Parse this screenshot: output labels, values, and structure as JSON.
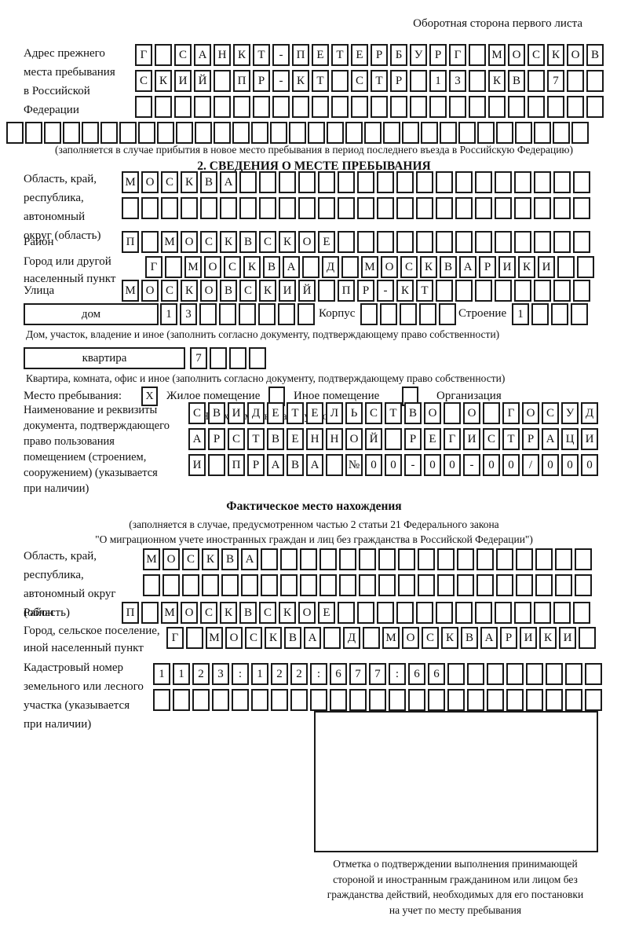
{
  "page": {
    "header_note": "Оборотная сторона первого листа"
  },
  "prev_address": {
    "label": "Адрес прежнего\nместа пребывания\nв Российской\nФедерации",
    "row1": {
      "text": "Г САНКТ-ПЕТЕРБУРГ МОСКОВ",
      "len": 24
    },
    "row2": {
      "text": "СКИЙ ПР-КТ СТР 13 КВ 7",
      "len": 24
    },
    "row3": {
      "text": "",
      "len": 24
    },
    "overflow_row": {
      "text": "",
      "len": 31
    },
    "caption": "(заполняется в случае прибытия в новое место пребывания в период последнего въезда в Российскую Федерацию)"
  },
  "section2": {
    "title": "2. СВЕДЕНИЯ О МЕСТЕ ПРЕБЫВАНИЯ",
    "region": {
      "label": "Область, край,\nреспублика,\nавтономный\nокруг (область)",
      "row1": {
        "text": "МОСКВА",
        "len": 24
      },
      "row2": {
        "text": "",
        "len": 24
      }
    },
    "district": {
      "label": "Район",
      "row": {
        "text": "П МОСКВСКОЕ",
        "len": 24
      }
    },
    "city": {
      "label": "Город или другой\nнаселенный пункт",
      "row": {
        "text": "Г МОСКВА Д МОСКВАРИКИ",
        "len": 23
      }
    },
    "street": {
      "label": "Улица",
      "row": {
        "text": "МОСКОВСКИЙ ПР-КТ",
        "len": 24
      }
    },
    "house": {
      "box_label": "дом",
      "cells": {
        "text": "13",
        "len": 8
      },
      "korpus_label": "Корпус",
      "korpus_cells": {
        "text": "",
        "len": 5
      },
      "stroenie_label": "Строение",
      "stroenie_cells": {
        "text": "1",
        "len": 4
      },
      "caption": "Дом, участок, владение и иное (заполнить согласно документу, подтверждающему право собственности)"
    },
    "apartment": {
      "box_label": "квартира",
      "cells": {
        "text": "7",
        "len": 4
      },
      "caption": "Квартира, комната, офис и иное (заполнить согласно документу, подтверждающему право собственности)"
    },
    "stay_type": {
      "label": "Место пребывания:",
      "options": [
        {
          "label": "Жилое помещение",
          "mark": "X"
        },
        {
          "label": "Иное помещение",
          "mark": ""
        },
        {
          "label": "Организация",
          "mark": ""
        }
      ],
      "hint": "(Необходимо выбрать нужное)"
    },
    "document": {
      "label": "Наименование и реквизиты\nдокумента, подтверждающего\nправо пользования\nпомещением (строением,\nсооружением) (указывается\nпри наличии)",
      "row1": {
        "text": "СВИДЕТЕЛЬСТВО О ГОСУД",
        "len": 21
      },
      "row2": {
        "text": "АРСТВЕННОЙ РЕГИСТРАЦИ",
        "len": 21
      },
      "row3": {
        "text": "И ПРАВА №00-00-00/000",
        "len": 21
      }
    }
  },
  "actual_location": {
    "title": "Фактическое место нахождения",
    "note": "(заполняется в случае, предусмотренном частью 2 статьи 21 Федерального закона\n\"О миграционном учете иностранных граждан и лиц без гражданства в Российской Федерации\")",
    "region": {
      "label": "Область, край,\nреспублика,\nавтономный округ\n(область)",
      "row1": {
        "text": "МОСКВА",
        "len": 23
      },
      "row2": {
        "text": "",
        "len": 23
      }
    },
    "district": {
      "label": "Район",
      "row": {
        "text": "П МОСКВСКОЕ",
        "len": 24
      }
    },
    "city": {
      "label": "Город, сельское поселение,\nиной населенный пункт",
      "row": {
        "text": "Г МОСКВА Д МОСКВАРИКИ",
        "len": 22
      }
    },
    "cadastral": {
      "label": "Кадастровый номер\nземельного или лесного\nучастка (указывается\nпри наличии)",
      "row1": {
        "text": "1123:122:677:66",
        "len": 23
      },
      "row2": {
        "text": "",
        "len": 23
      }
    },
    "stamp_caption": "Отметка о подтверждении выполнения принимающей\nстороной и иностранным гражданином или лицом без\nгражданства действий, необходимых для его постановки\nна учет по месту пребывания"
  }
}
